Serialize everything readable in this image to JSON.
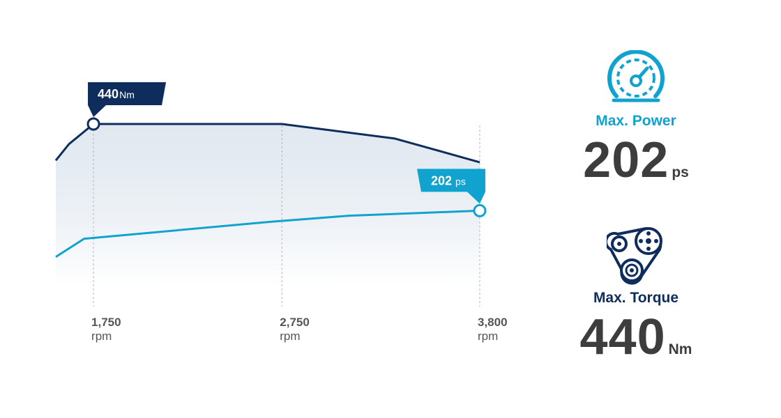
{
  "colors": {
    "navy": "#0f2d5c",
    "cyan": "#10a3cf",
    "value_text": "#3d3d3d"
  },
  "chart_data": {
    "type": "line",
    "xlabel": "",
    "ylabel": "",
    "x_ticks": [
      {
        "value": 1750,
        "label": "1,750",
        "unit": "rpm"
      },
      {
        "value": 2750,
        "label": "2,750",
        "unit": "rpm"
      },
      {
        "value": 3800,
        "label": "3,800",
        "unit": "rpm"
      }
    ],
    "series": [
      {
        "name": "",
        "color": "#0f2d5c",
        "points": [
          [
            1550,
            340
          ],
          [
            1620,
            385
          ],
          [
            1750,
            440
          ],
          [
            2750,
            440
          ],
          [
            3350,
            400
          ],
          [
            3800,
            335
          ]
        ],
        "peak": {
          "x": 1750,
          "value": "440",
          "unit": "Nm"
        }
      },
      {
        "name": "",
        "color": "#10a3cf",
        "points": [
          [
            1550,
            75
          ],
          [
            1700,
            125
          ],
          [
            2700,
            172
          ],
          [
            3100,
            188
          ],
          [
            3800,
            202
          ]
        ],
        "peak": {
          "x": 3800,
          "value": "202",
          "unit": "ps"
        }
      }
    ],
    "grid": false,
    "legend": "none"
  },
  "stats": {
    "power": {
      "label": "Max. Power",
      "value": "202",
      "unit": "ps",
      "icon": "speedometer-icon"
    },
    "torque": {
      "label": "Max. Torque",
      "value": "440",
      "unit": "Nm",
      "icon": "belt-pulley-icon"
    }
  }
}
